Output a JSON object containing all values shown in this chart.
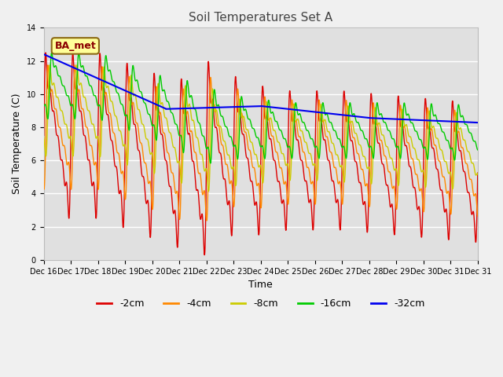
{
  "title": "Soil Temperatures Set A",
  "xlabel": "Time",
  "ylabel": "Soil Temperature (C)",
  "ylim": [
    0,
    14
  ],
  "yticks": [
    0,
    2,
    4,
    6,
    8,
    10,
    12,
    14
  ],
  "x_labels": [
    "Dec 16",
    "Dec 17",
    "Dec 18",
    "Dec 19",
    "Dec 20",
    "Dec 21",
    "Dec 22",
    "Dec 23",
    "Dec 24",
    "Dec 25",
    "Dec 26",
    "Dec 27",
    "Dec 28",
    "Dec 29",
    "Dec 30",
    "Dec 31",
    "Dec 31"
  ],
  "legend_label": "BA_met",
  "legend_box_facecolor": "#FFFF99",
  "legend_box_edgecolor": "#8B6914",
  "series_labels": [
    "-2cm",
    "-4cm",
    "-8cm",
    "-16cm",
    "-32cm"
  ],
  "series_colors": [
    "#dd0000",
    "#ff8800",
    "#cccc00",
    "#00cc00",
    "#0000ee"
  ],
  "fig_facecolor": "#f0f0f0",
  "plot_facecolor": "#e0e0e0",
  "grid_color": "#ffffff",
  "title_color": "#444444",
  "tick_label_fontsize": 7,
  "title_fontsize": 11,
  "axis_label_fontsize": 9,
  "legend_fontsize": 9,
  "linewidth": 1.0
}
